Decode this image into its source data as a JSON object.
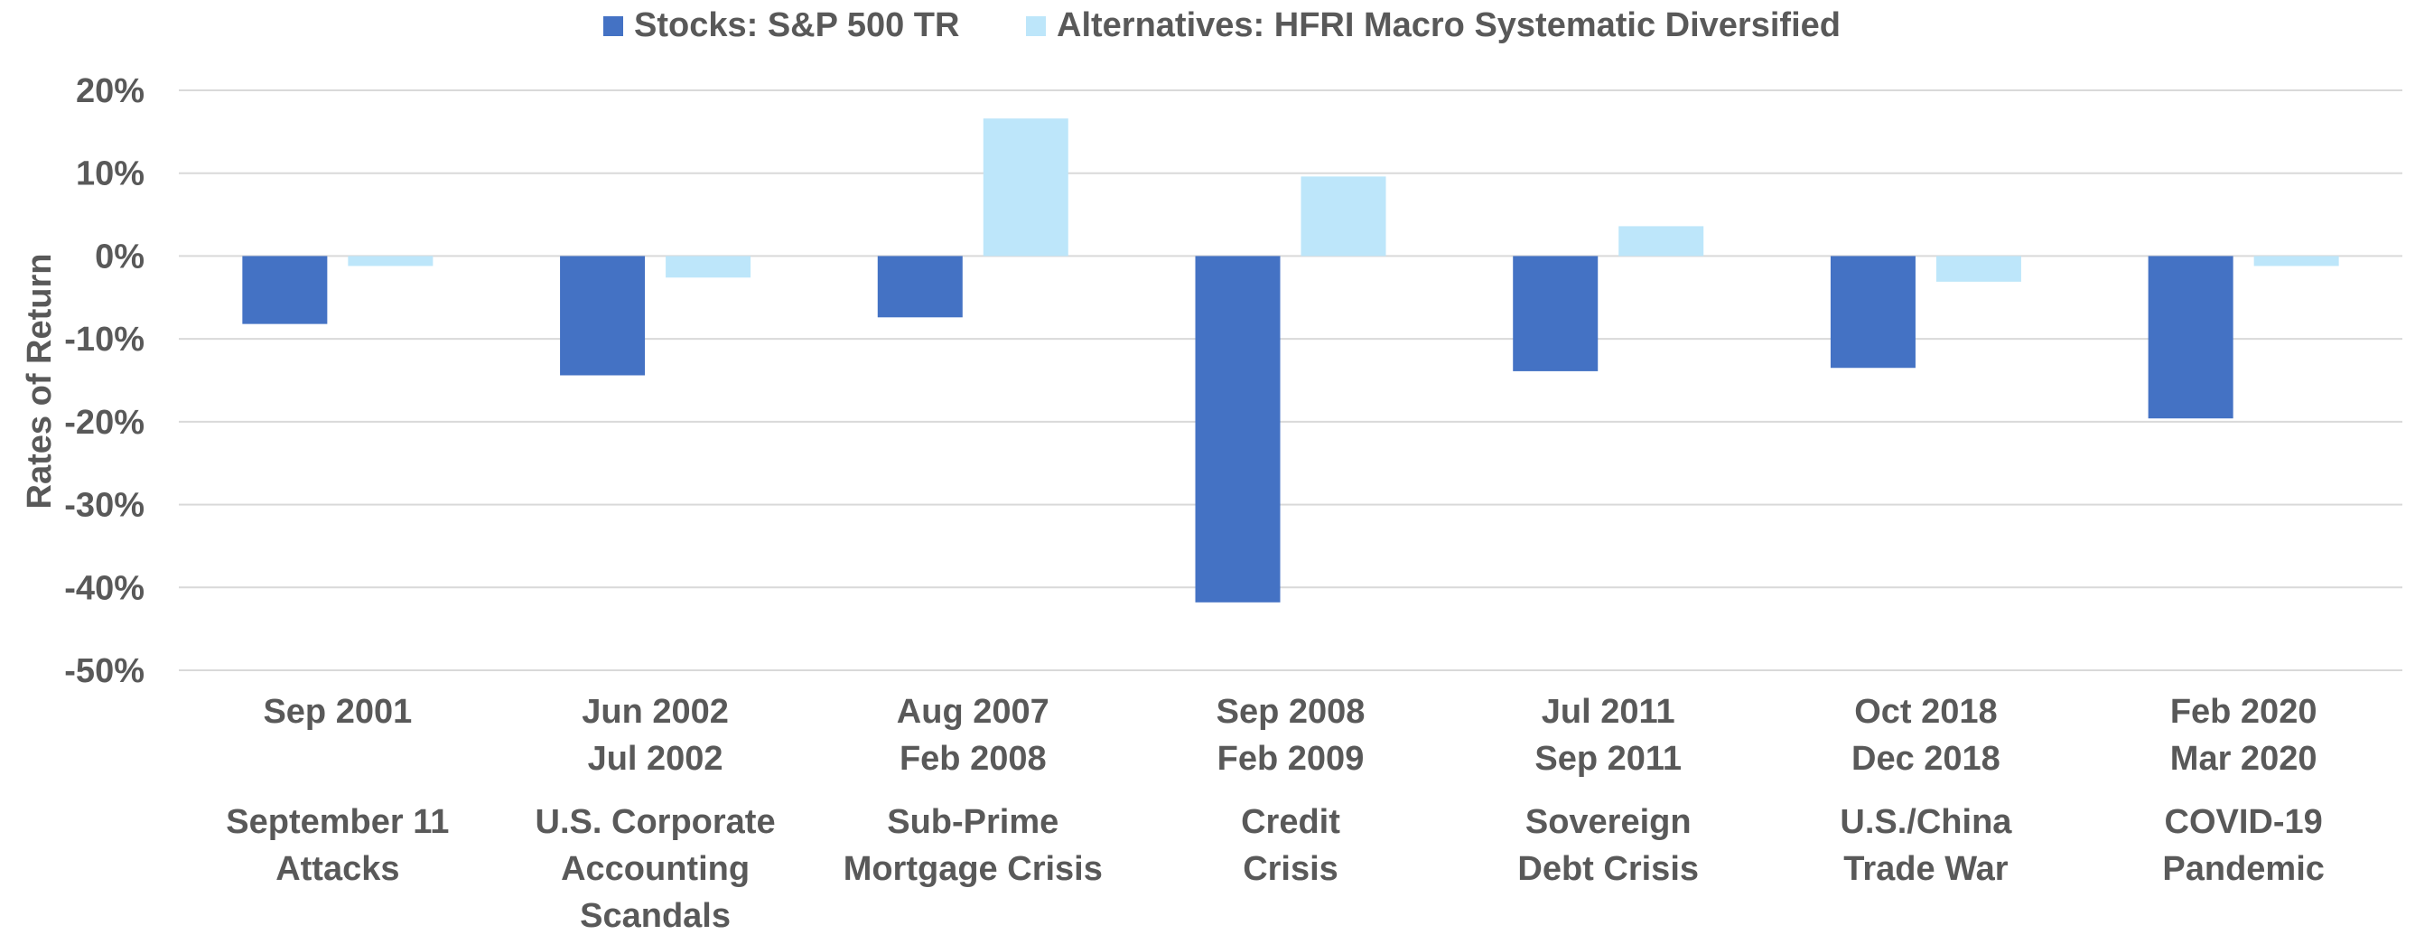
{
  "chart_data": {
    "type": "bar",
    "ylabel": "Rates of Return",
    "ylim": [
      -50,
      20
    ],
    "yticks": [
      20,
      10,
      0,
      -10,
      -20,
      -30,
      -40,
      -50
    ],
    "ytick_labels": [
      "20%",
      "10%",
      "0%",
      "-10%",
      "-20%",
      "-30%",
      "-40%",
      "-50%"
    ],
    "grid": true,
    "legend_position": "top",
    "categories": [
      {
        "dates": [
          "Sep 2001"
        ],
        "event": [
          "September 11",
          "Attacks"
        ]
      },
      {
        "dates": [
          "Jun 2002",
          "Jul 2002"
        ],
        "event": [
          "U.S. Corporate",
          "Accounting",
          "Scandals"
        ]
      },
      {
        "dates": [
          "Aug 2007",
          "Feb 2008"
        ],
        "event": [
          "Sub-Prime",
          "Mortgage Crisis"
        ]
      },
      {
        "dates": [
          "Sep 2008",
          "Feb 2009"
        ],
        "event": [
          "Credit",
          "Crisis"
        ]
      },
      {
        "dates": [
          "Jul 2011",
          "Sep 2011"
        ],
        "event": [
          "Sovereign",
          "Debt Crisis"
        ]
      },
      {
        "dates": [
          "Oct 2018",
          "Dec 2018"
        ],
        "event": [
          "U.S./China",
          "Trade War"
        ]
      },
      {
        "dates": [
          "Feb 2020",
          "Mar 2020"
        ],
        "event": [
          "COVID-19",
          "Pandemic"
        ]
      }
    ],
    "series": [
      {
        "name": "Stocks: S&P 500 TR",
        "color": "#4472c4",
        "values": [
          -8.2,
          -14.4,
          -7.4,
          -41.8,
          -13.9,
          -13.5,
          -19.6
        ]
      },
      {
        "name": "Alternatives: HFRI Macro Systematic Diversified",
        "color": "#bde6fa",
        "values": [
          -1.2,
          -2.6,
          16.6,
          9.6,
          3.6,
          -3.1,
          -1.2
        ]
      }
    ]
  }
}
